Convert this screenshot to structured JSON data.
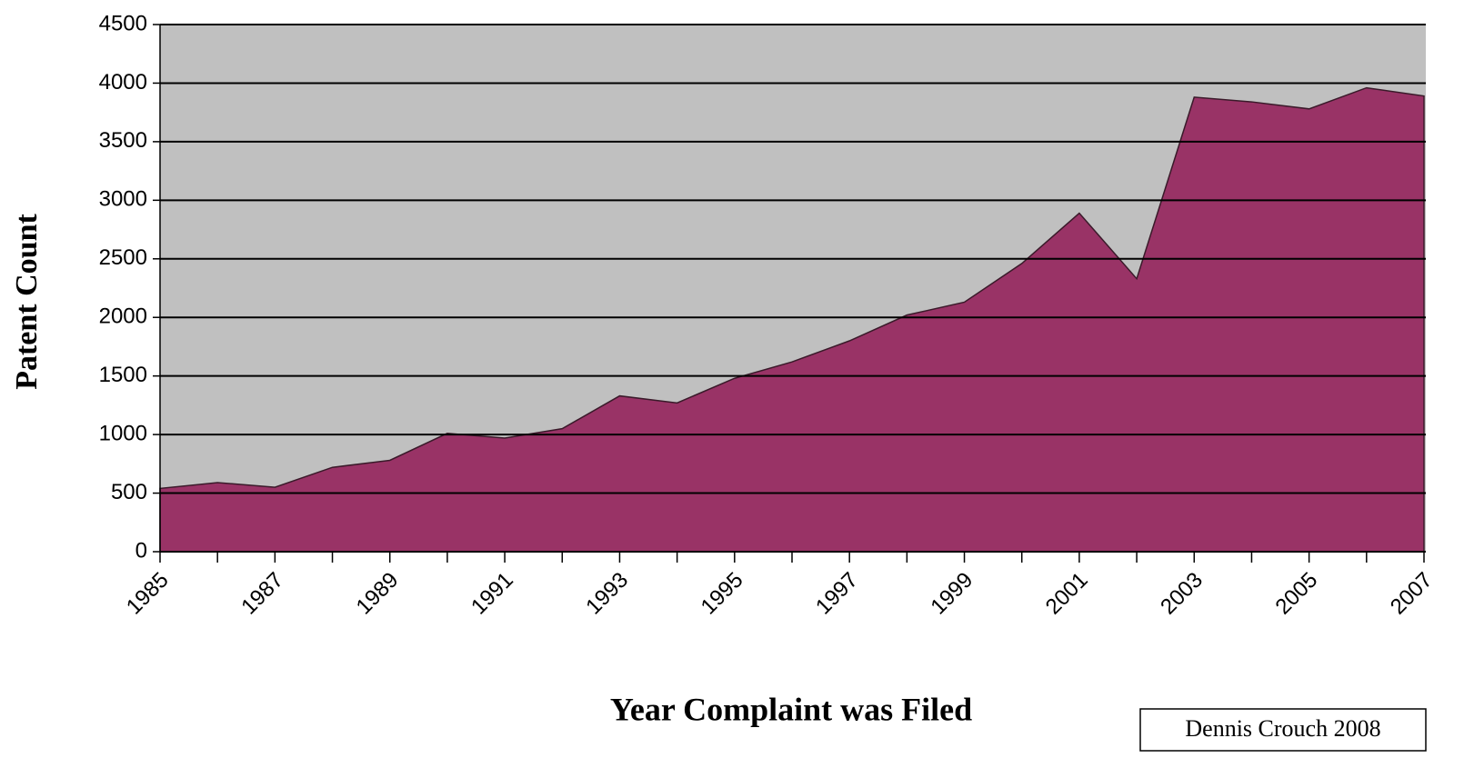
{
  "chart_data": {
    "type": "area",
    "xlabel": "Year Complaint was Filed",
    "ylabel": "Patent Count",
    "annotation": "Dennis Crouch 2008",
    "categories": [
      "1985",
      null,
      "1987",
      null,
      "1989",
      null,
      "1991",
      null,
      "1993",
      null,
      "1995",
      null,
      "1997",
      null,
      "1999",
      null,
      "2001",
      null,
      "2003",
      null,
      "2005",
      null,
      "2007"
    ],
    "values": [
      540,
      590,
      550,
      720,
      780,
      1010,
      970,
      1050,
      1330,
      1270,
      1480,
      1620,
      1800,
      2020,
      2130,
      2460,
      2890,
      2330,
      3880,
      3840,
      3780,
      3960,
      3890
    ],
    "color": "#993366",
    "ylim": [
      0,
      4500
    ],
    "yticks": [
      0,
      500,
      1000,
      1500,
      2000,
      2500,
      3000,
      3500,
      4000,
      4500
    ],
    "grid": true
  }
}
